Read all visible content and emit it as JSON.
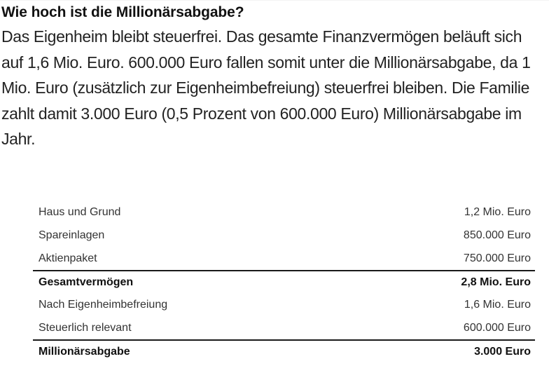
{
  "article": {
    "heading": "Wie hoch ist die Millionärsabgabe?",
    "paragraph": "Das Eigenheim bleibt steuerfrei. Das gesamte Finanzvermögen beläuft sich auf 1,6 Mio. Euro. 600.000 Euro fallen somit unter die Millionärsabgabe, da 1 Mio. Euro (zusätzlich zur Eigenheimbefreiung) steuerfrei bleiben. Die Familie zahlt damit 3.000 Euro (0,5 Prozent von 600.000 Euro) Millionärsabgabe im Jahr."
  },
  "table": {
    "rows": [
      {
        "label": "Haus und Grund",
        "value": "1,2 Mio. Euro",
        "bold": false
      },
      {
        "label": "Spareinlagen",
        "value": "850.000 Euro",
        "bold": false
      },
      {
        "label": "Aktienpaket",
        "value": "750.000 Euro",
        "bold": false
      },
      {
        "label": "Gesamtvermögen",
        "value": "2,8 Mio. Euro",
        "bold": true
      },
      {
        "label": "Nach Eigenheimbefreiung",
        "value": "1,6 Mio. Euro",
        "bold": false
      },
      {
        "label": "Steuerlich relevant",
        "value": "600.000 Euro",
        "bold": false
      },
      {
        "label": "Millionärsabgabe",
        "value": "3.000 Euro",
        "bold": true
      }
    ]
  },
  "colors": {
    "text": "#222222",
    "rule": "#1a1a1a",
    "background": "#ffffff"
  }
}
